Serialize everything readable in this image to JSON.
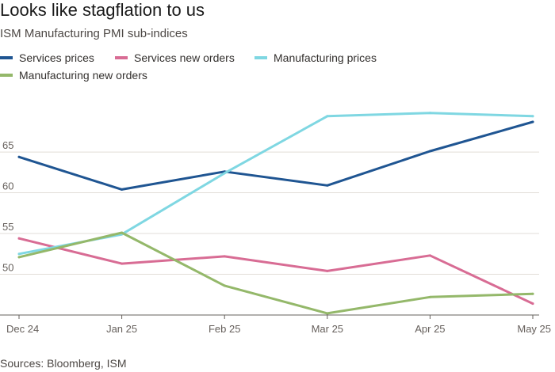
{
  "title": "Looks like stagflation to us",
  "subtitle": "ISM Manufacturing PMI sub-indices",
  "source": "Sources: Bloomberg, ISM",
  "chart_data": {
    "type": "line",
    "categories": [
      "Dec 24",
      "Jan 25",
      "Feb 25",
      "Mar 25",
      "Apr 25",
      "May 25"
    ],
    "ylim": [
      45,
      72
    ],
    "yticks": [
      50,
      55,
      60,
      65
    ],
    "grid": true,
    "legend_placement": "top-left",
    "series": [
      {
        "name": "Services prices",
        "color": "#1f5592",
        "values": [
          64.4,
          60.4,
          62.6,
          60.9,
          65.1,
          68.7
        ]
      },
      {
        "name": "Services new orders",
        "color": "#d86c94",
        "values": [
          54.4,
          51.3,
          52.2,
          50.4,
          52.3,
          46.4
        ]
      },
      {
        "name": "Manufacturing prices",
        "color": "#7fd7e2",
        "values": [
          52.5,
          54.9,
          62.4,
          69.4,
          69.8,
          69.4
        ]
      },
      {
        "name": "Manufacturing new orders",
        "color": "#94b86a",
        "values": [
          52.1,
          55.1,
          48.6,
          45.2,
          47.2,
          47.6
        ]
      }
    ]
  }
}
